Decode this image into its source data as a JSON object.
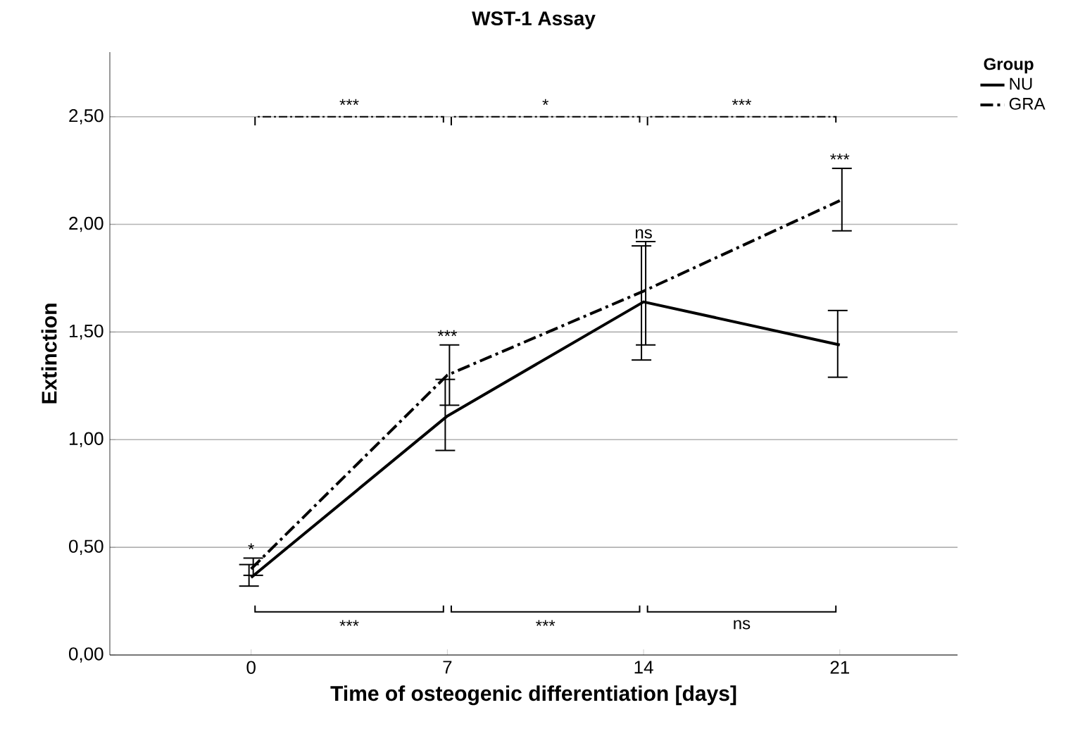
{
  "chart_data": {
    "type": "line",
    "title": "WST-1 Assay",
    "xlabel": "Time of osteogenic differentiation [days]",
    "ylabel": "Extinction",
    "legend_title": "Group",
    "categories": [
      "0",
      "7",
      "14",
      "21"
    ],
    "series": [
      {
        "name": "NU",
        "color": "#000000",
        "line_style": "solid",
        "values": [
          0.36,
          1.11,
          1.64,
          1.44
        ],
        "errors": [
          [
            0.32,
            0.42
          ],
          [
            0.95,
            1.28
          ],
          [
            1.37,
            1.9
          ],
          [
            1.29,
            1.6
          ]
        ]
      },
      {
        "name": "GRA",
        "color": "#000000",
        "line_style": "dashdot",
        "values": [
          0.4,
          1.3,
          1.69,
          2.11
        ],
        "errors": [
          [
            0.37,
            0.45
          ],
          [
            1.16,
            1.44
          ],
          [
            1.44,
            1.92
          ],
          [
            1.97,
            2.26
          ]
        ]
      }
    ],
    "ylim": [
      0,
      2.8
    ],
    "yticks": [
      {
        "value": 0,
        "label": "0,00"
      },
      {
        "value": 0.5,
        "label": "0,50"
      },
      {
        "value": 1,
        "label": "1,00"
      },
      {
        "value": 1.5,
        "label": "1,50"
      },
      {
        "value": 2,
        "label": "2,00"
      },
      {
        "value": 2.5,
        "label": "2,50"
      }
    ],
    "grid": "y",
    "legend": "top right",
    "marker": "none",
    "annotations": [
      "***",
      "*",
      "***",
      "***",
      "***",
      "ns",
      "*",
      "***",
      "ns",
      "***"
    ]
  }
}
